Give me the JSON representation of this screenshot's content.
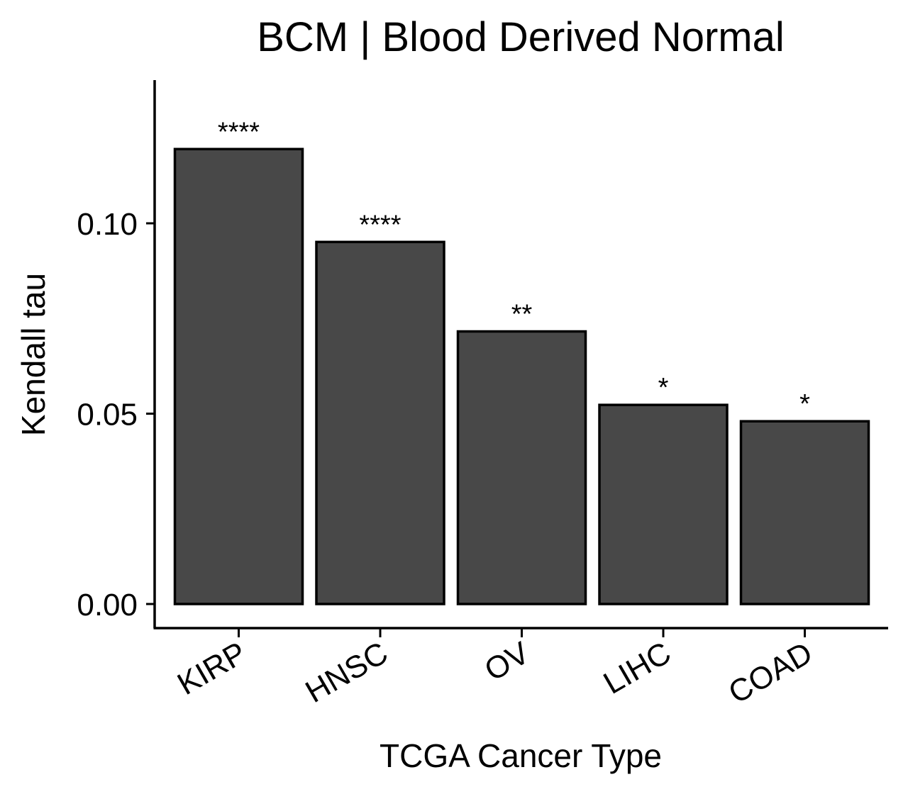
{
  "chart_data": {
    "type": "bar",
    "title": "BCM | Blood Derived Normal",
    "xlabel": "TCGA Cancer Type",
    "ylabel": "Kendall tau",
    "categories": [
      "KIRP",
      "HNSC",
      "OV",
      "LIHC",
      "COAD"
    ],
    "values": [
      0.1195,
      0.0951,
      0.0716,
      0.0523,
      0.048
    ],
    "significance": [
      "****",
      "****",
      "**",
      "*",
      "*"
    ],
    "ylim": [
      0,
      0.133
    ],
    "yticks": [
      0.0,
      0.05,
      0.1
    ],
    "ytick_labels": [
      "0.00",
      "0.05",
      "0.10"
    ],
    "grid": false,
    "legend": "none",
    "colors": {
      "bar_fill": "#484848",
      "bar_stroke": "#000000",
      "axis": "#000000"
    }
  }
}
